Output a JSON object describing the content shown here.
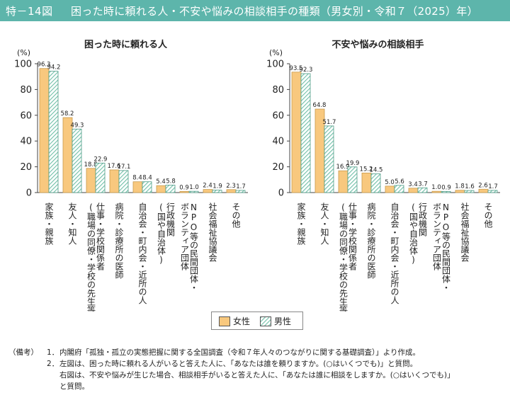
{
  "header": {
    "figure_no": "特－14図",
    "title": "困った時に頼れる人・不安や悩みの相談相手の種類（男女別・令和７（2025）年）"
  },
  "legend": {
    "female": "女性",
    "male": "男性"
  },
  "colors": {
    "female": "#f8c87e",
    "male_hatch": "#6fbfa7",
    "header": "#5db5ab"
  },
  "chart_data": [
    {
      "type": "bar",
      "title": "困った時に頼れる人",
      "unit": "(%)",
      "ylim": [
        0,
        100
      ],
      "yticks": [
        "0",
        "20",
        "40",
        "60",
        "80",
        "100"
      ],
      "categories": [
        [
          "家族・親族"
        ],
        [
          "友人・知人"
        ],
        [
          "仕事・学校関係者",
          "(職場の同僚・学校の先生等)"
        ],
        [
          "病院・診療所の医師"
        ],
        [
          "自治会・町内会・近所の人"
        ],
        [
          "行政機関",
          "(国や自治体)"
        ],
        [
          "NPO等の民間団体・",
          "ボランティア団体"
        ],
        [
          "社会福祉協議会"
        ],
        [
          "その他"
        ]
      ],
      "series": [
        {
          "name": "女性",
          "values": [
            96.3,
            58.2,
            18.8,
            17.6,
            8.4,
            5.4,
            0.9,
            2.4,
            2.3
          ],
          "labels": [
            "96.3",
            "58.2",
            "18.8",
            "17.6",
            "8.4",
            "5.4",
            "0.9",
            "2.4",
            "2.3"
          ]
        },
        {
          "name": "男性",
          "values": [
            94.2,
            49.3,
            22.9,
            17.1,
            8.4,
            5.8,
            1.0,
            1.9,
            1.7
          ],
          "labels": [
            "94.2",
            "49.3",
            "22.9",
            "17.1",
            "8.4",
            "5.8",
            "1.0",
            "1.9",
            "1.7"
          ]
        }
      ]
    },
    {
      "type": "bar",
      "title": "不安や悩みの相談相手",
      "unit": "(%)",
      "ylim": [
        0,
        100
      ],
      "yticks": [
        "0",
        "20",
        "40",
        "60",
        "80",
        "100"
      ],
      "categories": [
        [
          "家族・親族"
        ],
        [
          "友人・知人"
        ],
        [
          "仕事・学校関係者",
          "(職場の同僚・学校の先生等)"
        ],
        [
          "病院・診療所の医師"
        ],
        [
          "自治会・町内会・近所の人"
        ],
        [
          "行政機関",
          "(国や自治体)"
        ],
        [
          "NPO等の民間団体・",
          "ボランティア団体"
        ],
        [
          "社会福祉協議会"
        ],
        [
          "その他"
        ]
      ],
      "series": [
        {
          "name": "女性",
          "values": [
            93.5,
            64.8,
            16.9,
            15.2,
            5.0,
            3.4,
            1.0,
            1.8,
            2.6
          ],
          "labels": [
            "93.5",
            "64.8",
            "16.9",
            "15.2",
            "5.0",
            "3.4",
            "1.0",
            "1.8",
            "2.6"
          ]
        },
        {
          "name": "男性",
          "values": [
            92.3,
            51.7,
            19.9,
            14.5,
            5.6,
            3.7,
            0.9,
            1.6,
            1.7
          ],
          "labels": [
            "92.3",
            "51.7",
            "19.9",
            "14.5",
            "5.6",
            "3.7",
            "0.9",
            "1.6",
            "1.7"
          ]
        }
      ]
    }
  ],
  "notes": {
    "label": "（備考）",
    "items": [
      {
        "num": "1．",
        "lines": [
          "内閣府「孤独・孤立の実態把握に関する全国調査（令和７年人々のつながりに関する基礎調査）」より作成。"
        ]
      },
      {
        "num": "2．",
        "lines": [
          "左図は、困った時に頼れる人がいると答えた人に、「あなたは誰を頼りますか。(○はいくつでも)」と質問。",
          "右図は、不安や悩みが生じた場合、相談相手がいると答えた人に、「あなたは誰に相談をしますか。(○はいくつでも)」",
          "と質問。"
        ]
      }
    ]
  }
}
